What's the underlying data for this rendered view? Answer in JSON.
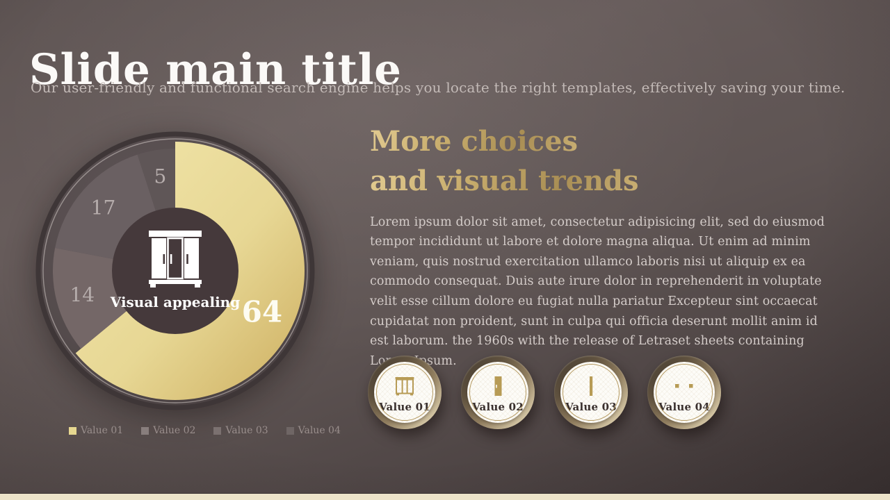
{
  "slide": {
    "title": "Slide main title",
    "subtitle": "Our user-friendly and functional search engine helps you locate the right templates, effectively saving your time."
  },
  "heading": {
    "line1": "More choices",
    "line2": "and visual trends"
  },
  "body_text": "Lorem ipsum dolor sit amet, consectetur adipisicing elit, sed do eiusmod tempor incididunt ut labore et dolore magna aliqua. Ut enim ad minim veniam, quis nostrud exercitation ullamco laboris nisi ut aliquip ex ea commodo consequat. Duis aute irure dolor in reprehenderit in voluptate velit esse cillum dolore eu fugiat nulla pariatur Excepteur sint occaecat cupidatat non proident, sunt in culpa qui officia deserunt mollit anim id est laborum. the 1960s with the release of Letraset sheets containing Lorem Ipsum.",
  "chart_data": {
    "type": "pie",
    "title": "Visual appealing",
    "center_label": "Visual appealing",
    "center_icon": "wardrobe-icon",
    "start_angle_deg": 0,
    "direction": "clockwise",
    "legend_position": "bottom-left",
    "slices": [
      {
        "label": "Value 01",
        "value": 64,
        "emphasized": true,
        "gradient": [
          "#f2e6ab",
          "#cdae60"
        ],
        "legend_color": "#e6d790",
        "label_color": "#fdfcf2",
        "label_size": 42
      },
      {
        "label": "Value 02",
        "value": 14,
        "color": "#746767",
        "legend_color": "#887e7d",
        "label_color": "#b6adac",
        "label_size": 28
      },
      {
        "label": "Value 03",
        "value": 17,
        "color": "#6a6062",
        "legend_color": "#7b7170",
        "label_color": "#b6adac",
        "label_size": 28
      },
      {
        "label": "Value 04",
        "value": 5,
        "color": "#5f5657",
        "legend_color": "#6f6665",
        "label_color": "#b6adac",
        "label_size": 28
      }
    ]
  },
  "badges": {
    "items": [
      {
        "label": "Value 01",
        "icon": "wardrobe-icon"
      },
      {
        "label": "Value 02",
        "icon": "door-icon"
      },
      {
        "label": "Value 03",
        "icon": "panel-icon"
      },
      {
        "label": "Value 04",
        "icon": "handles-icon"
      }
    ]
  },
  "colors": {
    "accent_gold": "#c9ad6d",
    "background_dark": "#473e3e",
    "bottom_strip": "#ece3c9",
    "chart_hole": "#45393b"
  }
}
